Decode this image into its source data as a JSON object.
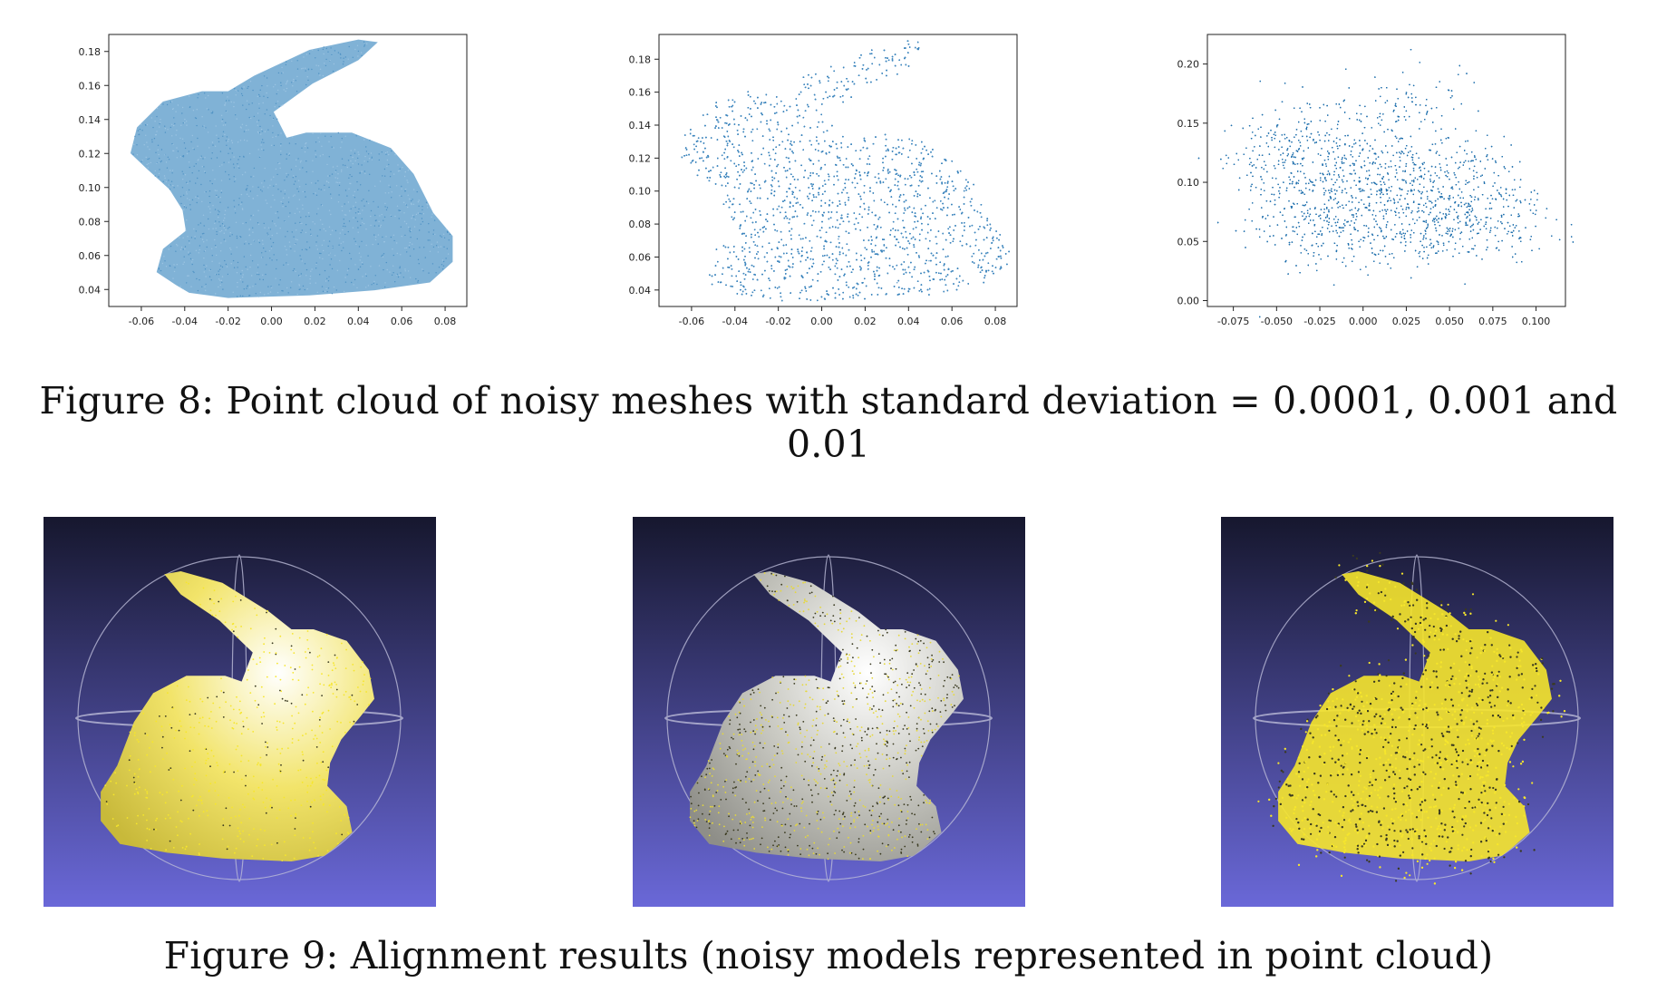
{
  "figure8": {
    "caption": "Figure 8: Point cloud of noisy meshes with standard deviation = 0.0001, 0.001 and 0.01",
    "colors": {
      "point": "#2e7ab6",
      "axis": "#222222"
    }
  },
  "chart_data": [
    {
      "type": "scatter",
      "title": "",
      "xlabel": "",
      "ylabel": "",
      "noise_std": 0.0001,
      "xlim": [
        -0.075,
        0.09
      ],
      "ylim": [
        0.03,
        0.19
      ],
      "xticks": [
        -0.06,
        -0.04,
        -0.02,
        0.0,
        0.02,
        0.04,
        0.06,
        0.08
      ],
      "xtick_labels": [
        "-0.06",
        "-0.04",
        "-0.02",
        "0.00",
        "0.02",
        "0.04",
        "0.06",
        "0.08"
      ],
      "yticks": [
        0.04,
        0.06,
        0.08,
        0.1,
        0.12,
        0.14,
        0.16,
        0.18
      ],
      "ytick_labels": [
        "0.04",
        "0.06",
        "0.08",
        "0.10",
        "0.12",
        "0.14",
        "0.16",
        "0.18"
      ],
      "point_extent": {
        "x": [
          -0.065,
          0.085
        ],
        "y": [
          0.035,
          0.187
        ]
      },
      "grid": false,
      "point_color": "#6aa5cf"
    },
    {
      "type": "scatter",
      "title": "",
      "xlabel": "",
      "ylabel": "",
      "noise_std": 0.001,
      "xlim": [
        -0.075,
        0.09
      ],
      "ylim": [
        0.03,
        0.195
      ],
      "xticks": [
        -0.06,
        -0.04,
        -0.02,
        0.0,
        0.02,
        0.04,
        0.06,
        0.08
      ],
      "xtick_labels": [
        "-0.06",
        "-0.04",
        "-0.02",
        "0.00",
        "0.02",
        "0.04",
        "0.06",
        "0.08"
      ],
      "yticks": [
        0.04,
        0.06,
        0.08,
        0.1,
        0.12,
        0.14,
        0.16,
        0.18
      ],
      "yticks_labels_ignored": null,
      "ytick_labels": [
        "0.04",
        "0.06",
        "0.08",
        "0.10",
        "0.12",
        "0.14",
        "0.16",
        "0.18"
      ],
      "point_extent": {
        "x": [
          -0.066,
          0.087
        ],
        "y": [
          0.033,
          0.19
        ]
      },
      "grid": false,
      "point_color": "#3d86bd"
    },
    {
      "type": "scatter",
      "title": "",
      "xlabel": "",
      "ylabel": "",
      "noise_std": 0.01,
      "xlim": [
        -0.09,
        0.117
      ],
      "ylim": [
        -0.005,
        0.225
      ],
      "xticks": [
        -0.075,
        -0.05,
        -0.025,
        0.0,
        0.025,
        0.05,
        0.075,
        0.1
      ],
      "xtick_labels": [
        "-0.075",
        "-0.050",
        "-0.025",
        "0.000",
        "0.025",
        "0.050",
        "0.075",
        "0.100"
      ],
      "yticks": [
        0.0,
        0.05,
        0.1,
        0.15,
        0.2
      ],
      "ytick_labels": [
        "0.00",
        "0.05",
        "0.10",
        "0.15",
        "0.20"
      ],
      "point_extent": {
        "x": [
          -0.085,
          0.11
        ],
        "y": [
          0.01,
          0.21
        ]
      },
      "grid": false,
      "point_color": "#1f6fae"
    }
  ],
  "figure9": {
    "caption": "Figure 9: Alignment results (noisy models represented in point cloud)",
    "panels": [
      {
        "name": "alignment-std-0.0001",
        "style": "dense"
      },
      {
        "name": "alignment-std-0.001",
        "style": "speckled"
      },
      {
        "name": "alignment-std-0.01",
        "style": "scattered"
      }
    ],
    "colors": {
      "bg_top": "#16172e",
      "bg_bottom": "#6a68d8",
      "mesh_yellow": "#f2e46a",
      "mesh_gray": "#c9c9c2",
      "point_yellow": "#f6e62c",
      "trackball": "#bcbcd8"
    }
  }
}
